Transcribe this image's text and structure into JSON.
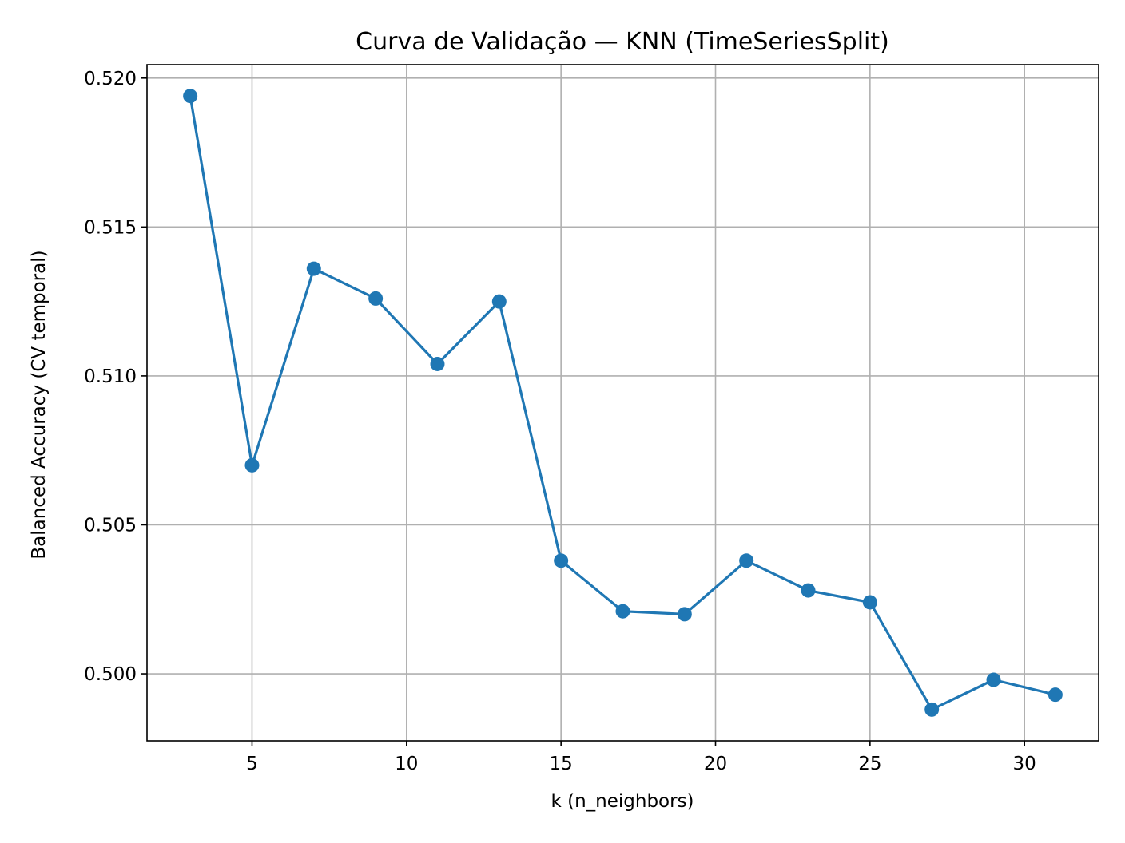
{
  "chart_data": {
    "type": "line",
    "title": "Curva de Validação — KNN (TimeSeriesSplit)",
    "xlabel": "k (n_neighbors)",
    "ylabel": "Balanced Accuracy (CV temporal)",
    "x": [
      3,
      5,
      7,
      9,
      11,
      13,
      15,
      17,
      19,
      21,
      23,
      25,
      27,
      29,
      31
    ],
    "series": [
      {
        "values": [
          0.5194,
          0.507,
          0.5136,
          0.5126,
          0.5104,
          0.5125,
          0.5038,
          0.5021,
          0.502,
          0.5038,
          0.5028,
          0.5024,
          0.4988,
          0.4998,
          0.4993
        ],
        "color": "#1f77b4",
        "marker": "circle"
      }
    ],
    "xlim": [
      1.6,
      32.4
    ],
    "ylim": [
      0.49775,
      0.52045
    ],
    "x_ticks": [
      5,
      10,
      15,
      20,
      25,
      30
    ],
    "x_tick_labels": [
      "5",
      "10",
      "15",
      "20",
      "25",
      "30"
    ],
    "y_ticks": [
      0.5,
      0.505,
      0.51,
      0.515,
      0.52
    ],
    "y_tick_labels": [
      "0.500",
      "0.505",
      "0.510",
      "0.515",
      "0.520"
    ],
    "grid": true,
    "legend": "none"
  }
}
